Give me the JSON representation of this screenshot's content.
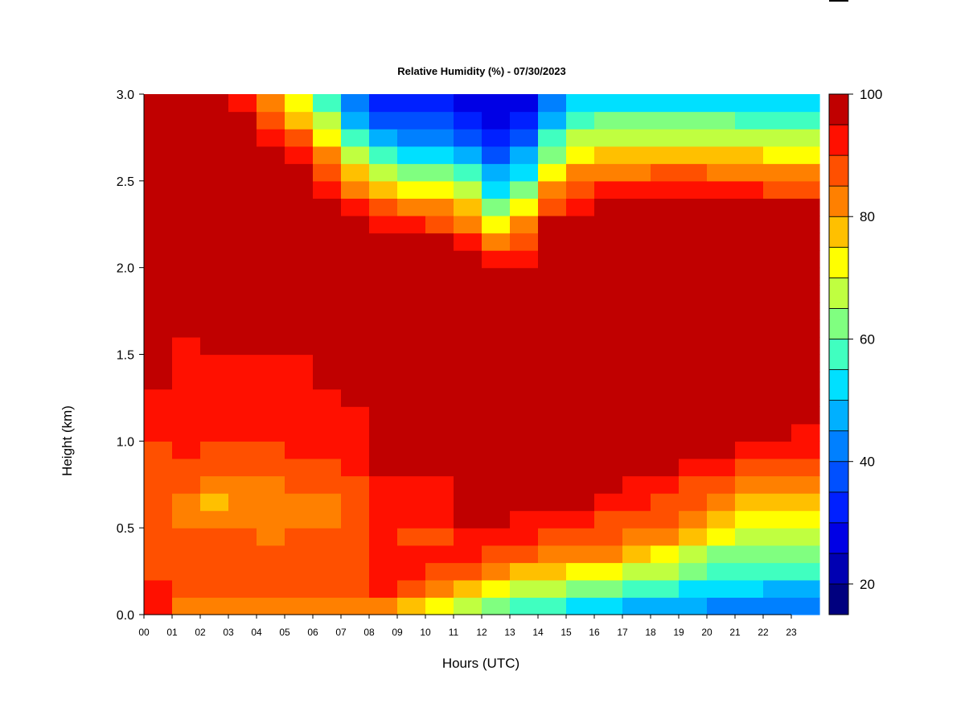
{
  "chart_data": {
    "type": "heatmap",
    "title": "Relative Humidity (%) - 07/30/2023",
    "xlabel": "Hours (UTC)",
    "ylabel": "Height (km)",
    "xlim": [
      0,
      24
    ],
    "ylim": [
      0.0,
      3.0
    ],
    "x_ticks": [
      "00",
      "01",
      "02",
      "03",
      "04",
      "05",
      "06",
      "07",
      "08",
      "09",
      "10",
      "11",
      "12",
      "13",
      "14",
      "15",
      "16",
      "17",
      "18",
      "19",
      "20",
      "21",
      "22",
      "23"
    ],
    "y_ticks": [
      "0.0",
      "0.5",
      "1.0",
      "1.5",
      "2.0",
      "2.5",
      "3.0"
    ],
    "colorbar": {
      "min": 15,
      "max": 100,
      "ticks": [
        "20",
        "40",
        "60",
        "80",
        "100"
      ],
      "levels": [
        15,
        20,
        25,
        30,
        35,
        40,
        45,
        50,
        55,
        60,
        65,
        70,
        75,
        80,
        85,
        90,
        95,
        100
      ],
      "colors": [
        "#00007f",
        "#0000b2",
        "#0000e5",
        "#0020ff",
        "#0050ff",
        "#0080ff",
        "#00b0ff",
        "#00e0ff",
        "#40ffc0",
        "#80ff80",
        "#c0ff40",
        "#ffff00",
        "#ffc000",
        "#ff8000",
        "#ff5000",
        "#ff1000",
        "#c00000",
        "#7f0000"
      ]
    },
    "hours": [
      0,
      1,
      2,
      3,
      4,
      5,
      6,
      7,
      8,
      9,
      10,
      11,
      12,
      13,
      14,
      15,
      16,
      17,
      18,
      19,
      20,
      21,
      22,
      23,
      24
    ],
    "heights_km": [
      0.0,
      0.1,
      0.2,
      0.3,
      0.4,
      0.5,
      0.6,
      0.7,
      0.8,
      0.9,
      1.0,
      1.1,
      1.2,
      1.3,
      1.4,
      1.5,
      1.6,
      1.7,
      1.8,
      1.9,
      2.0,
      2.1,
      2.2,
      2.3,
      2.4,
      2.5,
      2.6,
      2.7,
      2.8,
      2.9,
      3.0
    ],
    "humidity_pct": [
      [
        96,
        92,
        89,
        90,
        91,
        90,
        85,
        89,
        88,
        89,
        86,
        90,
        93,
        97,
        98,
        98,
        98,
        98,
        98,
        98,
        98,
        98,
        98,
        98,
        98,
        98,
        98,
        98,
        98,
        98,
        98
      ],
      [
        80,
        92,
        89,
        90,
        86,
        86,
        85,
        86,
        90,
        91,
        93,
        93,
        93,
        93,
        93,
        93,
        93,
        98,
        98,
        98,
        98,
        98,
        98,
        98,
        98,
        98,
        98,
        98,
        98,
        98,
        98
      ],
      [
        78,
        86,
        89,
        88,
        86,
        85,
        82,
        79,
        85,
        85,
        93,
        93,
        93,
        93,
        93,
        93,
        98,
        98,
        98,
        98,
        98,
        98,
        98,
        98,
        98,
        98,
        98,
        98,
        98,
        98,
        97
      ],
      [
        78,
        86,
        89,
        88,
        86,
        85,
        80,
        78,
        85,
        85,
        91,
        93,
        93,
        93,
        93,
        93,
        98,
        98,
        98,
        98,
        98,
        98,
        98,
        98,
        98,
        98,
        98,
        98,
        98,
        98,
        93
      ],
      [
        78,
        88,
        89,
        90,
        86,
        83,
        80,
        83,
        85,
        85,
        91,
        93,
        93,
        93,
        93,
        93,
        98,
        98,
        98,
        98,
        98,
        98,
        98,
        98,
        98,
        98,
        98,
        98,
        96,
        93,
        85
      ],
      [
        80,
        88,
        89,
        90,
        86,
        83,
        82,
        83,
        86,
        90,
        91,
        93,
        93,
        93,
        93,
        93,
        98,
        98,
        98,
        98,
        98,
        98,
        98,
        98,
        98,
        98,
        98,
        93,
        88,
        78,
        70
      ],
      [
        78,
        86,
        89,
        88,
        86,
        85,
        82,
        83,
        88,
        90,
        91,
        93,
        93,
        93,
        93,
        93,
        98,
        98,
        98,
        98,
        98,
        98,
        98,
        98,
        98,
        96,
        93,
        85,
        78,
        70,
        62
      ],
      [
        80,
        88,
        89,
        90,
        88,
        85,
        83,
        86,
        88,
        90,
        93,
        93,
        93,
        98,
        98,
        98,
        98,
        98,
        98,
        98,
        98,
        98,
        98,
        96,
        93,
        85,
        78,
        70,
        62,
        52,
        45
      ],
      [
        78,
        88,
        90,
        90,
        90,
        88,
        88,
        90,
        93,
        93,
        93,
        93,
        98,
        98,
        98,
        98,
        98,
        98,
        98,
        98,
        98,
        98,
        98,
        93,
        85,
        75,
        66,
        56,
        45,
        38,
        33
      ],
      [
        75,
        90,
        93,
        93,
        93,
        93,
        98,
        98,
        98,
        98,
        98,
        98,
        98,
        98,
        98,
        98,
        98,
        98,
        98,
        98,
        98,
        98,
        96,
        88,
        78,
        68,
        58,
        48,
        40,
        33,
        28
      ],
      [
        70,
        78,
        90,
        90,
        88,
        85,
        88,
        90,
        93,
        93,
        98,
        98,
        98,
        98,
        98,
        98,
        98,
        98,
        98,
        98,
        98,
        98,
        93,
        85,
        75,
        65,
        55,
        45,
        38,
        33,
        28
      ],
      [
        65,
        78,
        86,
        90,
        93,
        93,
        98,
        98,
        98,
        98,
        98,
        98,
        98,
        98,
        98,
        98,
        98,
        98,
        98,
        98,
        98,
        98,
        93,
        85,
        75,
        65,
        55,
        45,
        38,
        33,
        28
      ],
      [
        60,
        70,
        80,
        88,
        93,
        93,
        98,
        98,
        98,
        98,
        98,
        98,
        98,
        98,
        98,
        98,
        98,
        98,
        98,
        98,
        96,
        93,
        85,
        75,
        66,
        56,
        46,
        38,
        33,
        28,
        25
      ],
      [
        55,
        65,
        75,
        85,
        90,
        93,
        96,
        98,
        98,
        98,
        98,
        98,
        98,
        98,
        98,
        98,
        98,
        98,
        98,
        98,
        90,
        82,
        72,
        62,
        52,
        44,
        37,
        33,
        28,
        25,
        22
      ],
      [
        52,
        62,
        72,
        82,
        88,
        93,
        96,
        98,
        98,
        98,
        98,
        98,
        98,
        98,
        98,
        98,
        98,
        98,
        98,
        98,
        98,
        98,
        96,
        90,
        82,
        72,
        62,
        52,
        44,
        38,
        33
      ],
      [
        50,
        60,
        70,
        80,
        86,
        90,
        93,
        98,
        98,
        98,
        98,
        98,
        98,
        98,
        98,
        98,
        98,
        98,
        98,
        98,
        98,
        98,
        98,
        96,
        90,
        82,
        74,
        66,
        58,
        50,
        44
      ],
      [
        48,
        58,
        68,
        78,
        84,
        88,
        93,
        96,
        98,
        98,
        98,
        98,
        98,
        98,
        98,
        98,
        98,
        98,
        98,
        98,
        98,
        98,
        98,
        98,
        93,
        88,
        80,
        72,
        64,
        58,
        52
      ],
      [
        46,
        56,
        66,
        76,
        82,
        86,
        90,
        93,
        96,
        98,
        98,
        98,
        98,
        98,
        98,
        98,
        98,
        98,
        98,
        98,
        98,
        98,
        98,
        98,
        93,
        86,
        78,
        70,
        62,
        56,
        50
      ],
      [
        44,
        52,
        62,
        72,
        80,
        85,
        88,
        93,
        96,
        98,
        98,
        98,
        98,
        98,
        98,
        98,
        98,
        98,
        98,
        98,
        98,
        98,
        98,
        98,
        96,
        88,
        80,
        72,
        64,
        58,
        52
      ],
      [
        42,
        50,
        60,
        68,
        76,
        82,
        86,
        90,
        93,
        98,
        98,
        98,
        98,
        98,
        98,
        98,
        98,
        98,
        98,
        98,
        98,
        98,
        98,
        98,
        96,
        90,
        82,
        74,
        66,
        58,
        50
      ],
      [
        40,
        48,
        55,
        62,
        70,
        76,
        82,
        86,
        90,
        93,
        98,
        98,
        98,
        98,
        98,
        98,
        98,
        98,
        98,
        98,
        98,
        98,
        98,
        98,
        93,
        88,
        80,
        72,
        64,
        56,
        48
      ],
      [
        40,
        48,
        55,
        60,
        66,
        72,
        78,
        84,
        88,
        93,
        96,
        98,
        98,
        98,
        98,
        98,
        98,
        98,
        98,
        98,
        98,
        98,
        98,
        98,
        93,
        88,
        80,
        72,
        64,
        56,
        48
      ],
      [
        40,
        46,
        52,
        58,
        64,
        70,
        75,
        80,
        86,
        90,
        93,
        98,
        98,
        98,
        98,
        98,
        98,
        98,
        98,
        98,
        98,
        98,
        98,
        98,
        93,
        86,
        78,
        70,
        62,
        54,
        46
      ],
      [
        40,
        46,
        52,
        58,
        62,
        68,
        72,
        78,
        85,
        90,
        93,
        96,
        98,
        98,
        98,
        98,
        98,
        98,
        98,
        98,
        98,
        98,
        98,
        98,
        93,
        86,
        78,
        70,
        62,
        54,
        46
      ],
      [
        40,
        46,
        52,
        58,
        62,
        68,
        72,
        78,
        85,
        90,
        93,
        96,
        98,
        98,
        98,
        98,
        98,
        98,
        98,
        98,
        98,
        98,
        98,
        98,
        93,
        86,
        78,
        70,
        62,
        54,
        46
      ]
    ]
  }
}
